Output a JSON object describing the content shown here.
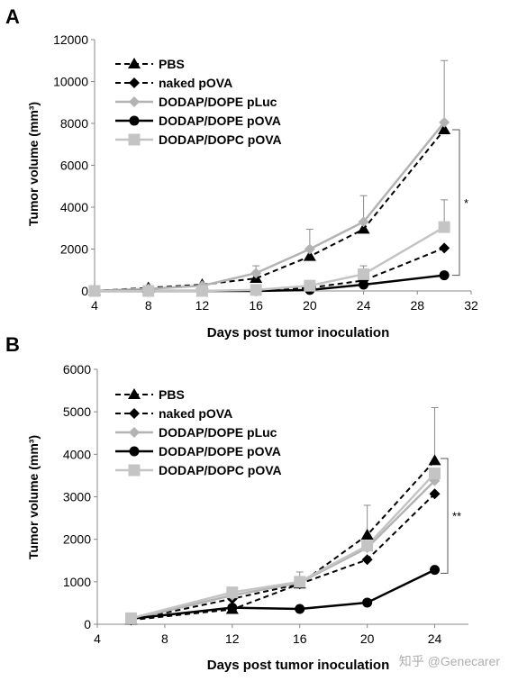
{
  "panels": [
    {
      "label": "A",
      "xlabel": "Days post tumor inoculation",
      "ylabel": "Tumor volume (mm³)",
      "significance": "*"
    },
    {
      "label": "B",
      "xlabel": "Days post tumor inoculation",
      "ylabel": "Tumor volume (mm³)",
      "significance": "**"
    }
  ],
  "watermark": "知乎 @Genecarer",
  "colors": {
    "dark": "#000000",
    "light_gray": "#b3b3b3",
    "mid_gray": "#c4c4c4"
  },
  "chart_data": [
    {
      "type": "line",
      "title": "",
      "xlabel": "Days post tumor inoculation",
      "ylabel": "Tumor volume (mm³)",
      "xlim": [
        4,
        32
      ],
      "ylim": [
        0,
        12000
      ],
      "xticks": [
        4,
        8,
        12,
        16,
        20,
        24,
        28,
        32
      ],
      "yticks": [
        0,
        2000,
        4000,
        6000,
        8000,
        10000,
        12000
      ],
      "legend_position": "top-left",
      "significance": {
        "text": "*",
        "between": [
          "DODAP/DOPE pLuc",
          "DODAP/DOPE pOVA"
        ]
      },
      "series": [
        {
          "name": "PBS",
          "marker": "triangle",
          "line": "dashed",
          "color": "#000000",
          "x": [
            4,
            8,
            12,
            16,
            20,
            24,
            30
          ],
          "y": [
            0,
            150,
            300,
            600,
            1650,
            2950,
            7700
          ]
        },
        {
          "name": "naked pOVA",
          "marker": "diamond",
          "line": "dashed",
          "color": "#000000",
          "x": [
            4,
            8,
            12,
            16,
            20,
            24,
            30
          ],
          "y": [
            0,
            0,
            0,
            50,
            150,
            500,
            2050
          ]
        },
        {
          "name": "DODAP/DOPE pLuc",
          "marker": "diamond",
          "line": "solid",
          "color": "#b3b3b3",
          "x": [
            4,
            8,
            12,
            16,
            20,
            24,
            30
          ],
          "y": [
            0,
            100,
            250,
            850,
            2000,
            3300,
            8050
          ],
          "error": [
            0,
            0,
            0,
            350,
            950,
            1250,
            2950
          ]
        },
        {
          "name": "DODAP/DOPE pOVA",
          "marker": "circle",
          "line": "solid",
          "color": "#000000",
          "x": [
            4,
            8,
            12,
            16,
            20,
            24,
            30
          ],
          "y": [
            0,
            0,
            0,
            0,
            50,
            300,
            750
          ],
          "error": [
            0,
            0,
            0,
            0,
            0,
            0,
            0
          ]
        },
        {
          "name": "DODAP/DOPC pOVA",
          "marker": "square",
          "line": "solid",
          "color": "#c4c4c4",
          "x": [
            4,
            8,
            12,
            16,
            20,
            24,
            30
          ],
          "y": [
            0,
            0,
            0,
            50,
            250,
            800,
            3050
          ],
          "error": [
            0,
            0,
            0,
            0,
            0,
            400,
            1300
          ]
        }
      ]
    },
    {
      "type": "line",
      "title": "",
      "xlabel": "Days post tumor inoculation",
      "ylabel": "Tumor volume (mm³)",
      "xlim": [
        4,
        26
      ],
      "ylim": [
        0,
        6000
      ],
      "xticks": [
        4,
        8,
        12,
        16,
        20,
        24
      ],
      "yticks": [
        0,
        1000,
        2000,
        3000,
        4000,
        5000,
        6000
      ],
      "legend_position": "top-left",
      "significance": {
        "text": "**",
        "between": [
          "PBS",
          "DODAP/DOPE pOVA"
        ]
      },
      "series": [
        {
          "name": "PBS",
          "marker": "triangle",
          "line": "dashed",
          "color": "#000000",
          "x": [
            6,
            12,
            16,
            20,
            24
          ],
          "y": [
            100,
            350,
            950,
            2100,
            3850
          ],
          "error": [
            0,
            0,
            0,
            700,
            1250
          ]
        },
        {
          "name": "naked pOVA",
          "marker": "diamond",
          "line": "dashed",
          "color": "#000000",
          "x": [
            6,
            12,
            16,
            20,
            24
          ],
          "y": [
            100,
            600,
            950,
            1520,
            3070
          ]
        },
        {
          "name": "DODAP/DOPE pLuc",
          "marker": "diamond",
          "line": "solid",
          "color": "#b3b3b3",
          "x": [
            6,
            12,
            16,
            20,
            24
          ],
          "y": [
            120,
            680,
            980,
            1800,
            3380
          ],
          "error": [
            0,
            0,
            250,
            0,
            0
          ]
        },
        {
          "name": "DODAP/DOPE pOVA",
          "marker": "circle",
          "line": "solid",
          "color": "#000000",
          "x": [
            6,
            12,
            16,
            20,
            24
          ],
          "y": [
            130,
            390,
            360,
            510,
            1280
          ]
        },
        {
          "name": "DODAP/DOPC pOVA",
          "marker": "square",
          "line": "solid",
          "color": "#c4c4c4",
          "x": [
            6,
            12,
            16,
            20,
            24
          ],
          "y": [
            140,
            750,
            1000,
            1850,
            3550
          ]
        }
      ]
    }
  ]
}
